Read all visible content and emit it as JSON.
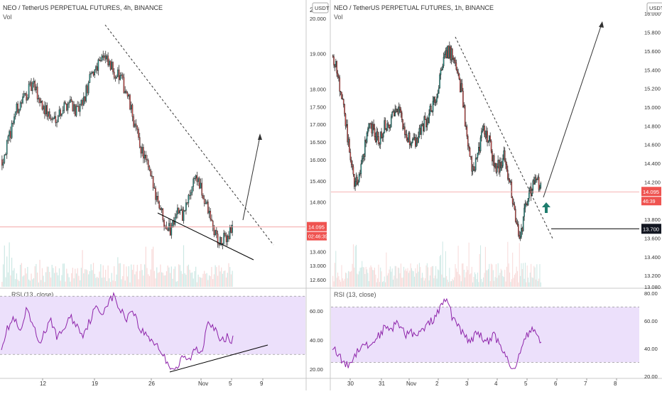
{
  "charts": [
    {
      "title": "NEO / TetherUS PERPETUAL FUTURES, 4h, BINANCE",
      "vol_label": "Vol",
      "currency_badge": "USDT",
      "y_axis_top_partial": "2",
      "y_ticks": [
        "20.000",
        "19.000",
        "18.000",
        "17.500",
        "17.000",
        "16.500",
        "16.000",
        "15.400",
        "14.800",
        "13.400",
        "13.000",
        "12.600"
      ],
      "price_tag": "14.095",
      "countdown_tag": "02:46:39",
      "x_ticks": [
        "12",
        "19",
        "26",
        "Nov",
        "5",
        "9"
      ],
      "rsi_label": "RSI (13, close)",
      "rsi_ticks": [
        "60.00",
        "40.00",
        "20.00"
      ]
    },
    {
      "title": "NEO / TetherUS PERPETUAL FUTURES, 1h, BINANCE",
      "vol_label": "Vol",
      "currency_badge": "USDT",
      "y_ticks": [
        "16.000",
        "15.800",
        "15.600",
        "15.400",
        "15.200",
        "15.000",
        "14.800",
        "14.600",
        "14.400",
        "14.200",
        "13.800",
        "13.600",
        "13.400",
        "13.200",
        "13.080"
      ],
      "price_tag": "14.095",
      "countdown_tag": "46:39",
      "level_tag": "13.700",
      "x_ticks": [
        "30",
        "31",
        "Nov",
        "2",
        "3",
        "4",
        "5",
        "6",
        "7",
        "8"
      ],
      "rsi_label": "RSI (13, close)",
      "rsi_ticks": [
        "80.00",
        "60.00",
        "40.00",
        "20.00"
      ]
    }
  ],
  "chart_data": [
    {
      "type": "candlestick",
      "title": "NEO / TetherUS PERPETUAL FUTURES, 4h, BINANCE",
      "x_ticks": [
        "12",
        "19",
        "26",
        "Nov",
        "5",
        "9"
      ],
      "ylim": [
        12.4,
        20.4
      ],
      "y_ticks": [
        20.0,
        19.0,
        18.0,
        17.5,
        17.0,
        16.5,
        16.0,
        15.4,
        14.8,
        13.4,
        13.0,
        12.6
      ],
      "close_path": [
        16.0,
        16.5,
        17.3,
        17.6,
        17.9,
        18.1,
        17.7,
        17.4,
        17.1,
        17.3,
        17.5,
        17.7,
        17.3,
        17.6,
        18.2,
        18.6,
        19.0,
        18.7,
        18.5,
        18.3,
        17.9,
        17.2,
        16.5,
        16.0,
        15.4,
        14.9,
        14.3,
        14.0,
        14.6,
        14.4,
        14.9,
        15.6,
        15.1,
        14.6,
        14.0,
        13.6,
        13.8,
        14.1
      ],
      "price_line": 14.095,
      "rsi": {
        "label": "RSI (13, close)",
        "ylim": [
          15,
          75
        ],
        "band": [
          30,
          70
        ],
        "values": [
          36,
          48,
          55,
          44,
          60,
          50,
          38,
          46,
          53,
          41,
          48,
          56,
          50,
          44,
          52,
          62,
          58,
          66,
          70,
          60,
          55,
          62,
          48,
          44,
          40,
          36,
          28,
          22,
          20,
          28,
          26,
          34,
          31,
          55,
          48,
          38,
          42,
          40
        ]
      }
    },
    {
      "type": "candlestick",
      "title": "NEO / TetherUS PERPETUAL FUTURES, 1h, BINANCE",
      "x_ticks": [
        "30",
        "31",
        "Nov",
        "2",
        "3",
        "4",
        "5",
        "6",
        "7",
        "8"
      ],
      "ylim": [
        13.08,
        16.1
      ],
      "y_ticks": [
        16.0,
        15.8,
        15.6,
        15.4,
        15.2,
        15.0,
        14.8,
        14.6,
        14.4,
        14.2,
        13.8,
        13.6,
        13.4,
        13.2,
        13.08
      ],
      "close_path": [
        15.55,
        15.35,
        15.0,
        14.6,
        14.2,
        14.25,
        14.55,
        14.85,
        14.7,
        14.65,
        14.8,
        14.85,
        15.0,
        14.9,
        14.75,
        14.6,
        14.65,
        14.8,
        14.85,
        15.0,
        15.1,
        15.45,
        15.6,
        15.55,
        15.35,
        15.1,
        14.55,
        14.3,
        14.55,
        14.8,
        14.65,
        14.4,
        14.35,
        14.5,
        14.2,
        13.85,
        13.6,
        13.9,
        14.1,
        14.25,
        14.15
      ],
      "price_line": 14.095,
      "level_line": 13.7,
      "rsi": {
        "label": "RSI (13, close)",
        "ylim": [
          20,
          83
        ],
        "band": [
          30,
          70
        ],
        "values": [
          42,
          36,
          30,
          28,
          33,
          40,
          44,
          41,
          46,
          50,
          55,
          52,
          58,
          56,
          50,
          53,
          48,
          52,
          56,
          60,
          64,
          72,
          75,
          62,
          58,
          50,
          46,
          48,
          52,
          46,
          44,
          50,
          42,
          38,
          28,
          24,
          40,
          48,
          54,
          50,
          46
        ]
      }
    }
  ]
}
